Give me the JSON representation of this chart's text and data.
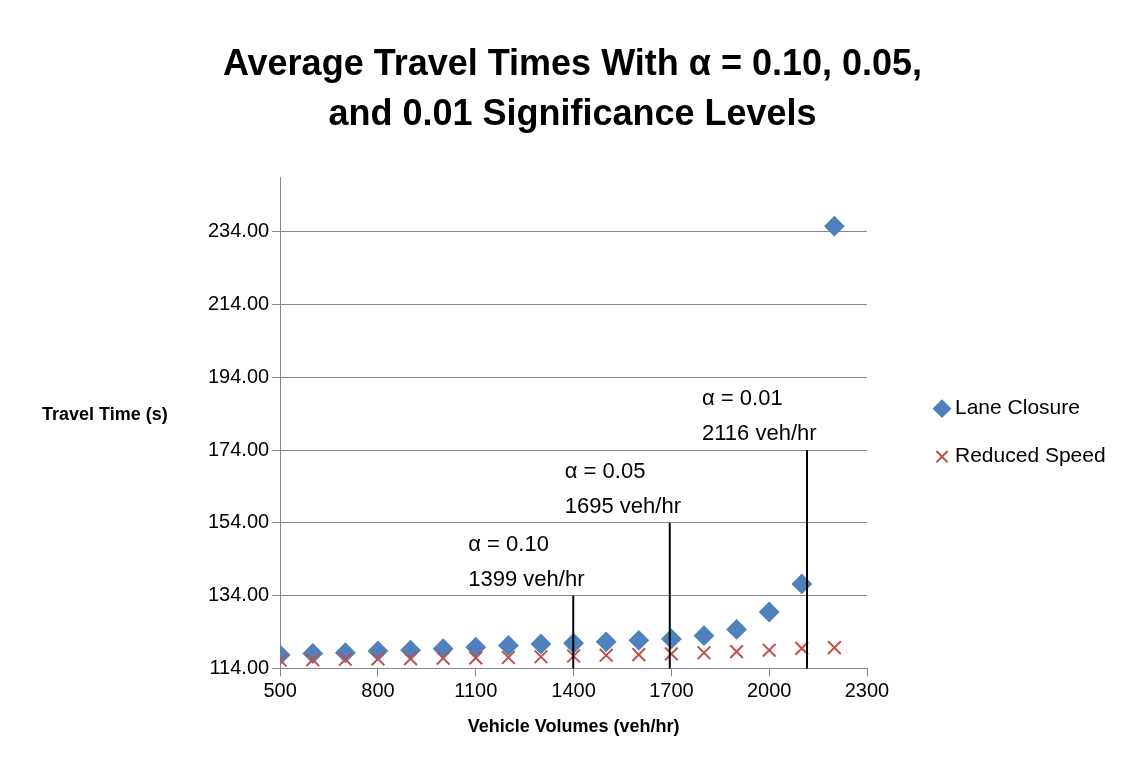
{
  "chart_data": {
    "type": "scatter",
    "title": "Average Travel Times With α = 0.10, 0.05, and 0.01 Significance Levels",
    "xlabel": "Vehicle Volumes (veh/hr)",
    "ylabel": "Travel Time (s)",
    "x": [
      500,
      600,
      700,
      800,
      900,
      1000,
      1100,
      1200,
      1300,
      1400,
      1500,
      1600,
      1700,
      1800,
      1900,
      2000,
      2100,
      2200
    ],
    "series": [
      {
        "name": "Lane Closure",
        "color": "#4f81bd",
        "marker": "diamond",
        "values": [
          117.7,
          118.1,
          118.3,
          118.8,
          119.0,
          119.4,
          119.8,
          120.3,
          120.7,
          120.9,
          121.3,
          121.7,
          122.1,
          123.0,
          124.7,
          129.5,
          137.2,
          235.5
        ]
      },
      {
        "name": "Reduced Speed",
        "color": "#c0504d",
        "marker": "cross",
        "values": [
          116.3,
          116.4,
          116.5,
          116.6,
          116.7,
          116.8,
          116.9,
          117.0,
          117.2,
          117.4,
          117.6,
          117.8,
          118.0,
          118.3,
          118.6,
          119.0,
          119.5,
          119.7
        ]
      }
    ],
    "xlim": [
      500,
      2300
    ],
    "xticks": [
      500,
      800,
      1100,
      1400,
      1700,
      2000,
      2300
    ],
    "ylim": [
      114,
      249
    ],
    "yticks": [
      {
        "value": 114,
        "label": "114.00"
      },
      {
        "value": 134,
        "label": "134.00"
      },
      {
        "value": 154,
        "label": "154.00"
      },
      {
        "value": 174,
        "label": "174.00"
      },
      {
        "value": 194,
        "label": "194.00"
      },
      {
        "value": 214,
        "label": "214.00"
      },
      {
        "value": 234,
        "label": "234.00"
      }
    ],
    "ref_lines": [
      {
        "axis": "x",
        "value": 1399,
        "label": "α = 0.10\n1399 veh/hr",
        "color": "#000000"
      },
      {
        "axis": "x",
        "value": 1695,
        "label": "α = 0.05\n1695 veh/hr",
        "color": "#000000"
      },
      {
        "axis": "x",
        "value": 2116,
        "label": "α = 0.01\n2116 veh/hr",
        "color": "#000000"
      }
    ],
    "grid": "y",
    "legend": "right"
  }
}
